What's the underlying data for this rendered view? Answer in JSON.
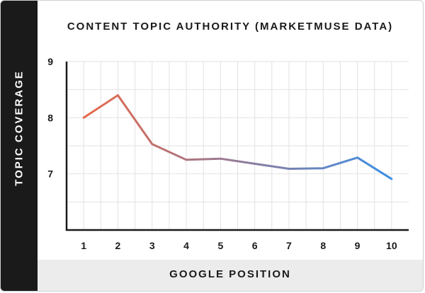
{
  "chart_data": {
    "type": "line",
    "title": "CONTENT TOPIC AUTHORITY (MARKETMUSE DATA)",
    "xlabel": "GOOGLE POSITION",
    "ylabel": "TOPIC COVERAGE",
    "x": [
      1,
      2,
      3,
      4,
      5,
      6,
      7,
      8,
      9,
      10
    ],
    "y": [
      8.0,
      8.4,
      7.53,
      7.25,
      7.27,
      7.18,
      7.09,
      7.1,
      7.29,
      6.91
    ],
    "xlim": [
      0.5,
      10.5
    ],
    "ylim": [
      6,
      9
    ],
    "yticks": [
      7,
      8,
      9
    ],
    "grid": true,
    "gradient": [
      "#e8684a",
      "#3d8fe6"
    ]
  }
}
